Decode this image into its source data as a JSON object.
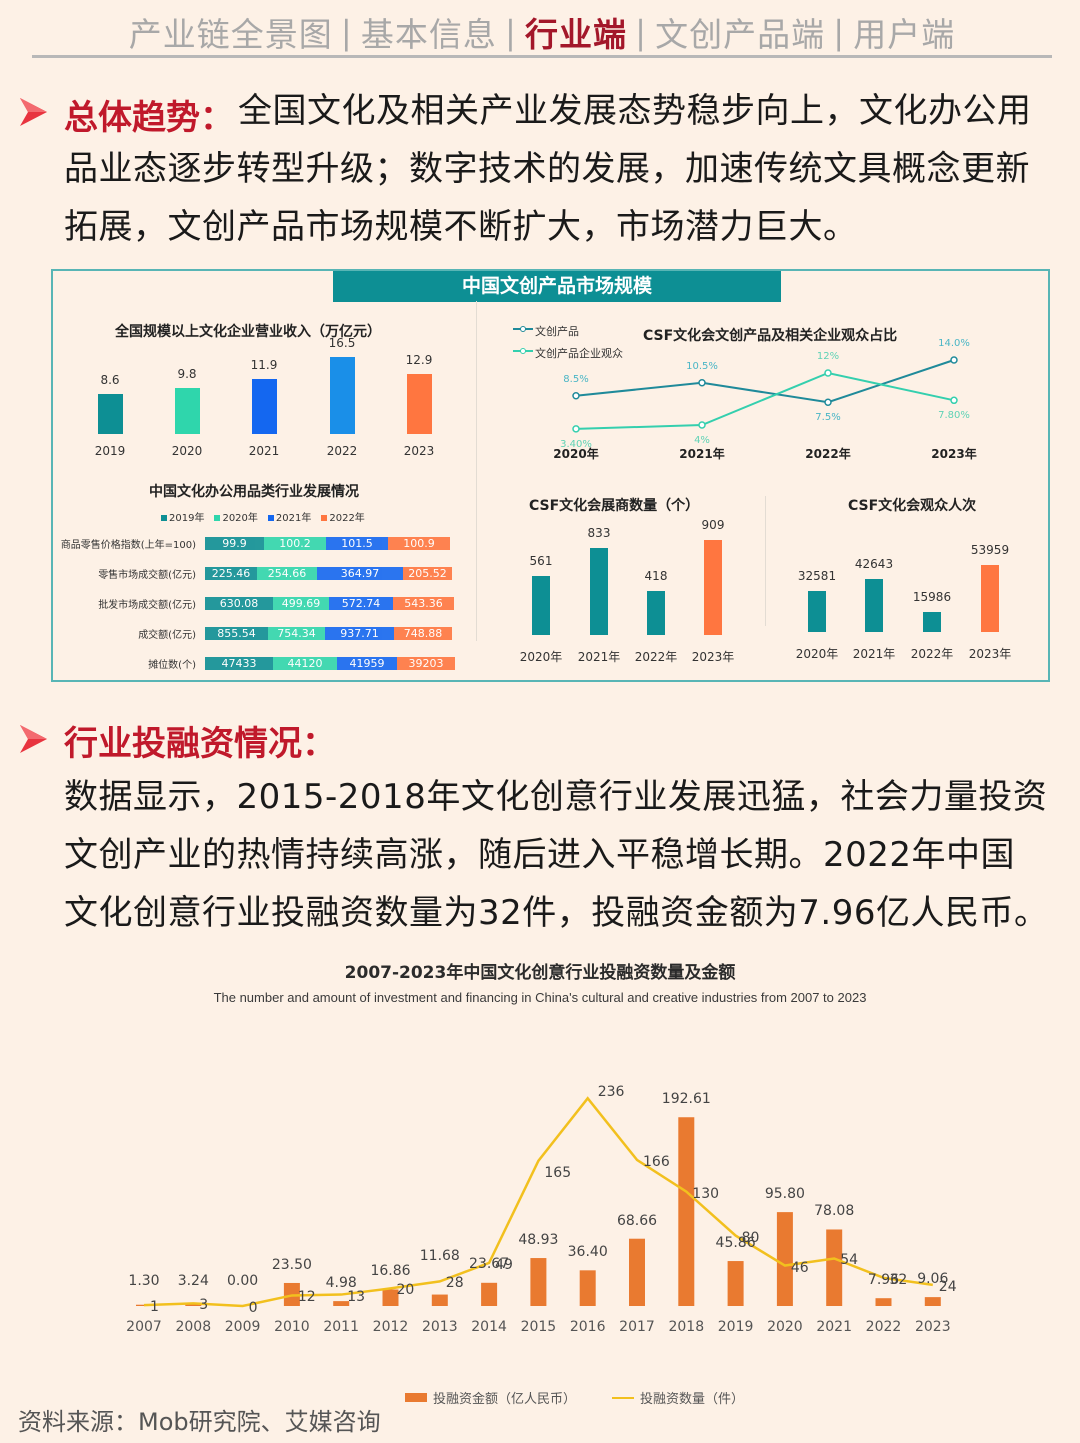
{
  "nav": {
    "items": [
      "产业链全景图",
      "基本信息",
      "行业端",
      "文创产品端",
      "用户端"
    ],
    "active_index": 2,
    "separator": "|"
  },
  "section1": {
    "title": "总体趋势：",
    "lines": [
      "全国文化及相关产业发展态势稳步向上，文化办公用",
      "品业态逐步转型升级；数字技术的发展，加速传统文具概念更新",
      "拓展，文创产品市场规模不断扩大，市场潜力巨大。"
    ]
  },
  "panel": {
    "banner": "中国文创产品市场规模"
  },
  "section2": {
    "title": "行业投融资情况：",
    "lines": [
      "数据显示，2015-2018年文化创意行业发展迅猛，社会力量投资",
      "文创产业的热情持续高涨，随后进入平稳增长期。2022年中国",
      "文化创意行业投融资数量为32件，投融资金额为7.96亿人民币。"
    ]
  },
  "source": "资料来源：Mob研究院、艾媒咨询",
  "colors": {
    "accent_red": "#c0192b",
    "teal": "#0d8f94",
    "mint": "#2fd6ac",
    "blue": "#1467f0",
    "sky": "#1a8fe8",
    "orange": "#ff7640",
    "bar_orange": "#e97a30",
    "line_yellow": "#f2c01e",
    "background": "#fdf1e6"
  },
  "chart_data": [
    {
      "id": "revenue",
      "type": "bar",
      "title": "全国规模以上文化企业营业收入（万亿元）",
      "categories": [
        "2019",
        "2020",
        "2021",
        "2022",
        "2023"
      ],
      "values": [
        8.6,
        9.8,
        11.9,
        16.5,
        12.9
      ],
      "value_labels": [
        "8.6",
        "9.8",
        "11.9",
        "16.5",
        "12.9"
      ],
      "colors": [
        "#0d8f94",
        "#2fd6ac",
        "#1467f0",
        "#1a8fe8",
        "#ff7640"
      ]
    },
    {
      "id": "csf_share",
      "type": "line",
      "title": "CSF文化会文创产品及相关企业观众占比",
      "categories": [
        "2020年",
        "2021年",
        "2022年",
        "2023年"
      ],
      "series": [
        {
          "name": "文创产品",
          "values": [
            8.5,
            10.5,
            7.5,
            14.0
          ],
          "labels": [
            "8.5%",
            "10.5%",
            "7.5%",
            "14.0%"
          ],
          "color": "#1f8a9a"
        },
        {
          "name": "文创产品企业观众",
          "values": [
            3.4,
            4,
            12,
            7.8
          ],
          "labels": [
            "3.40%",
            "4%",
            "12%",
            "7.80%"
          ],
          "color": "#34cfae"
        }
      ],
      "legend_position": "top-left"
    },
    {
      "id": "office_supplies",
      "type": "table",
      "title": "中国文化办公用品类行业发展情况",
      "legend": [
        "2019年",
        "2020年",
        "2021年",
        "2022年"
      ],
      "rows": [
        {
          "label": "商品零售价格指数(上年=100)",
          "values": [
            "99.9",
            "100.2",
            "101.5",
            "100.9"
          ]
        },
        {
          "label": "零售市场成交额(亿元)",
          "values": [
            "225.46",
            "254.66",
            "364.97",
            "205.52"
          ]
        },
        {
          "label": "批发市场成交额(亿元)",
          "values": [
            "630.08",
            "499.69",
            "572.74",
            "543.36"
          ]
        },
        {
          "label": "成交额(亿元)",
          "values": [
            "855.54",
            "754.34",
            "937.71",
            "748.88"
          ]
        },
        {
          "label": "摊位数(个)",
          "values": [
            "47433",
            "44120",
            "41959",
            "39203"
          ]
        }
      ]
    },
    {
      "id": "exhibitors",
      "type": "bar",
      "title": "CSF文化会展商数量（个）",
      "categories": [
        "2020年",
        "2021年",
        "2022年",
        "2023年"
      ],
      "values": [
        561,
        833,
        418,
        909
      ],
      "value_labels": [
        "561",
        "833",
        "418",
        "909"
      ]
    },
    {
      "id": "visitors",
      "type": "bar",
      "title": "CSF文化会观众人次",
      "categories": [
        "2020年",
        "2021年",
        "2022年",
        "2023年"
      ],
      "values": [
        32581,
        42643,
        15986,
        53959
      ],
      "value_labels": [
        "32581",
        "42643",
        "15986",
        "53959"
      ]
    },
    {
      "id": "investment",
      "type": "bar",
      "title": "2007-2023年中国文化创意行业投融资数量及金额",
      "subtitle": "The number and amount of investment and financing in China's cultural and creative industries from 2007 to 2023",
      "categories": [
        "2007",
        "2008",
        "2009",
        "2010",
        "2011",
        "2012",
        "2013",
        "2014",
        "2015",
        "2016",
        "2017",
        "2018",
        "2019",
        "2020",
        "2021",
        "2022",
        "2023"
      ],
      "series": [
        {
          "name": "投融资金额（亿人民币）",
          "type": "bar",
          "values": [
            1.3,
            3.24,
            0.0,
            23.5,
            4.98,
            16.86,
            11.68,
            23.67,
            48.93,
            36.4,
            68.66,
            192.61,
            45.86,
            95.8,
            78.08,
            7.96,
            9.06
          ],
          "labels": [
            "1.30",
            "3.24",
            "0.00",
            "23.50",
            "4.98",
            "16.86",
            "11.68",
            "23.67",
            "48.93",
            "36.40",
            "68.66",
            "192.61",
            "45.86",
            "95.80",
            "78.08",
            "7.96",
            "9.06"
          ]
        },
        {
          "name": "投融资数量（件）",
          "type": "line",
          "values": [
            1,
            3,
            0,
            12,
            13,
            20,
            28,
            49,
            165,
            236,
            166,
            130,
            80,
            46,
            54,
            32,
            24
          ],
          "labels": [
            "1",
            "3",
            "0",
            "12",
            "13",
            "20",
            "28",
            "49",
            "165",
            "236",
            "166",
            "130",
            "80",
            "46",
            "54",
            "32",
            "24"
          ]
        }
      ],
      "legend_position": "bottom",
      "grid": false
    }
  ]
}
